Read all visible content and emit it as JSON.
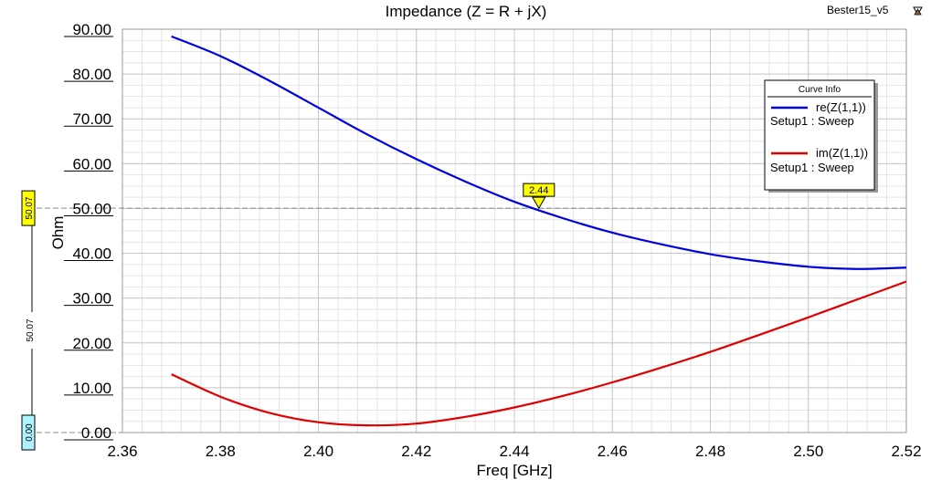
{
  "chart_data": {
    "type": "line",
    "title": "Impedance (Z = R + jX)",
    "design_name": "Bester15_v5",
    "xlabel": "Freq [GHz]",
    "ylabel": "Ohm",
    "xlim": [
      2.36,
      2.52
    ],
    "ylim": [
      0,
      90
    ],
    "x_ticks": [
      2.36,
      2.38,
      2.4,
      2.42,
      2.44,
      2.46,
      2.48,
      2.5,
      2.52
    ],
    "x_tick_labels": [
      "2.36",
      "2.38",
      "2.40",
      "2.42",
      "2.44",
      "2.46",
      "2.48",
      "2.50",
      "2.52"
    ],
    "y_ticks": [
      0,
      10,
      20,
      30,
      40,
      50,
      60,
      70,
      80,
      90
    ],
    "y_tick_labels": [
      "0.00",
      "10.00",
      "20.00",
      "30.00",
      "40.00",
      "50.00",
      "60.00",
      "70.00",
      "80.00",
      "90.00"
    ],
    "grid": true,
    "legend_title": "Curve Info",
    "legend_position": "top-right",
    "series": [
      {
        "label": "re(Z(1,1))",
        "sublabel": "Setup1 : Sweep",
        "color": "#0000e0",
        "x": [
          2.37,
          2.38,
          2.39,
          2.4,
          2.41,
          2.42,
          2.43,
          2.44,
          2.45,
          2.46,
          2.47,
          2.48,
          2.49,
          2.5,
          2.51,
          2.52
        ],
        "y": [
          88.4,
          84.0,
          78.5,
          72.5,
          66.5,
          61.0,
          56.0,
          51.5,
          47.8,
          44.6,
          42.0,
          39.8,
          38.2,
          37.0,
          36.5,
          36.8
        ]
      },
      {
        "label": "im(Z(1,1))",
        "sublabel": "Setup1 : Sweep",
        "color": "#e00000",
        "x": [
          2.37,
          2.38,
          2.39,
          2.4,
          2.41,
          2.42,
          2.43,
          2.44,
          2.45,
          2.46,
          2.47,
          2.48,
          2.49,
          2.5,
          2.51,
          2.52
        ],
        "y": [
          13.0,
          8.0,
          4.4,
          2.3,
          1.6,
          2.0,
          3.5,
          5.6,
          8.2,
          11.2,
          14.5,
          18.0,
          21.8,
          25.7,
          29.7,
          33.7
        ]
      }
    ],
    "marker": {
      "label": "2.44",
      "x": 2.445,
      "y": 50.07
    },
    "hline": {
      "value": 50.07,
      "label": "50.07"
    },
    "y_side_markers": [
      {
        "label": "50.07",
        "value": 50.07,
        "color": "#ffff00"
      },
      {
        "label": "0.00",
        "value": 0.0,
        "color": "#aef3ff"
      }
    ],
    "delta_label": "50.07"
  },
  "colors": {
    "grid": "#c8c8c8",
    "axes": "#000000"
  }
}
